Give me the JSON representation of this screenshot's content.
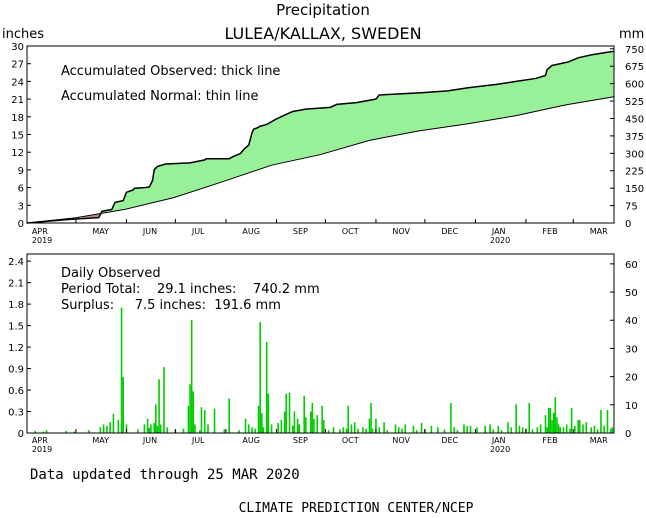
{
  "title": "Precipitation",
  "subtitle": "LULEA/KALLAX, SWEDEN",
  "footer_updated": "Data updated through 25 MAR 2020",
  "footer_credit": "CLIMATE PREDICTION CENTER/NCEP",
  "colors": {
    "surplus": "#98f098",
    "deficit": "#c08080",
    "daily": "#00cc00",
    "line": "#000000"
  },
  "chart_data": [
    {
      "type": "area",
      "left_unit": "inches",
      "right_unit": "mm",
      "legend_observed": "Accumulated Observed: thick line",
      "legend_normal": "Accumulated Normal: thin line",
      "ylim": [
        0,
        30
      ],
      "yticks_left": [
        "0",
        "3",
        "6",
        "9",
        "12",
        "15",
        "18",
        "21",
        "24",
        "27",
        "30"
      ],
      "yticks_right": [
        "0",
        "75",
        "150",
        "225",
        "300",
        "375",
        "450",
        "525",
        "600",
        "675",
        "750"
      ],
      "xlabels": [
        "APR",
        "MAY",
        "JUN",
        "JUL",
        "AUG",
        "SEP",
        "OCT",
        "NOV",
        "DEC",
        "JAN",
        "FEB",
        "MAR"
      ],
      "xlabel_years": {
        "APR": "2019",
        "JAN": "2020"
      },
      "observed": [
        [
          0,
          0
        ],
        [
          25,
          0.6
        ],
        [
          44,
          0.9
        ],
        [
          46,
          2
        ],
        [
          52,
          2.3
        ],
        [
          54,
          3.5
        ],
        [
          59,
          3.8
        ],
        [
          61,
          5.2
        ],
        [
          65,
          5.6
        ],
        [
          66,
          5.9
        ],
        [
          72,
          6.0
        ],
        [
          75,
          6.1
        ],
        [
          77,
          7.2
        ],
        [
          78,
          9.0
        ],
        [
          80,
          9.6
        ],
        [
          85,
          10.0
        ],
        [
          100,
          10.2
        ],
        [
          109,
          10.7
        ],
        [
          110,
          10.9
        ],
        [
          124,
          10.9
        ],
        [
          126,
          11.2
        ],
        [
          131,
          11.8
        ],
        [
          133,
          12.5
        ],
        [
          136,
          13.2
        ],
        [
          138,
          15.3
        ],
        [
          139,
          15.9
        ],
        [
          141,
          16.1
        ],
        [
          143,
          16.4
        ],
        [
          147,
          16.7
        ],
        [
          152,
          17.5
        ],
        [
          158,
          18.3
        ],
        [
          163,
          18.9
        ],
        [
          171,
          19.3
        ],
        [
          186,
          19.6
        ],
        [
          190,
          20.1
        ],
        [
          202,
          20.4
        ],
        [
          214,
          21.0
        ],
        [
          216,
          21.7
        ],
        [
          243,
          22.1
        ],
        [
          258,
          22.4
        ],
        [
          270,
          22.9
        ],
        [
          282,
          23.3
        ],
        [
          288,
          23.5
        ],
        [
          300,
          24.0
        ],
        [
          312,
          24.5
        ],
        [
          318,
          25.0
        ],
        [
          319,
          26.0
        ],
        [
          322,
          26.7
        ],
        [
          332,
          27.3
        ],
        [
          338,
          28.0
        ],
        [
          346,
          28.5
        ],
        [
          355,
          28.9
        ],
        [
          360,
          29.1
        ]
      ],
      "normal": [
        [
          0,
          0
        ],
        [
          30,
          0.9
        ],
        [
          60,
          2.3
        ],
        [
          90,
          4.3
        ],
        [
          120,
          7.0
        ],
        [
          150,
          9.8
        ],
        [
          180,
          11.6
        ],
        [
          210,
          14.0
        ],
        [
          240,
          15.6
        ],
        [
          270,
          16.8
        ],
        [
          300,
          18.2
        ],
        [
          330,
          20.0
        ],
        [
          360,
          21.4
        ]
      ]
    },
    {
      "type": "bar",
      "label": "Daily Observed",
      "period_total": "Period Total:    29.1 inches:    740.2 mm",
      "surplus": "Surplus:     7.5 inches:  191.6 mm",
      "ylim": [
        0,
        2.5
      ],
      "yticks_left": [
        "0",
        "0.3",
        "0.6",
        "0.9",
        "1.2",
        "1.5",
        "1.8",
        "2.1",
        "2.4"
      ],
      "yticks_right": [
        "0",
        "10",
        "20",
        "30",
        "40",
        "50",
        "60"
      ],
      "xlabels": [
        "APR",
        "MAY",
        "JUN",
        "JUL",
        "AUG",
        "SEP",
        "OCT",
        "NOV",
        "DEC",
        "JAN",
        "FEB",
        "MAR"
      ],
      "xlabel_years": {
        "APR": "2019",
        "JAN": "2020"
      },
      "daily": [
        [
          5,
          0.03
        ],
        [
          10,
          0.02
        ],
        [
          12,
          0.04
        ],
        [
          24,
          0.03
        ],
        [
          29,
          0.02
        ],
        [
          38,
          0.04
        ],
        [
          45,
          0.08
        ],
        [
          47,
          0.12
        ],
        [
          49,
          0.1
        ],
        [
          51,
          0.15
        ],
        [
          53,
          0.27
        ],
        [
          56,
          0.18
        ],
        [
          58,
          1.75
        ],
        [
          59,
          0.78
        ],
        [
          61,
          0.12
        ],
        [
          68,
          0.05
        ],
        [
          72,
          0.12
        ],
        [
          74,
          0.2
        ],
        [
          75,
          0.07
        ],
        [
          76,
          0.12
        ],
        [
          78,
          0.14
        ],
        [
          79,
          0.4
        ],
        [
          80,
          0.1
        ],
        [
          81,
          0.75
        ],
        [
          82,
          0.12
        ],
        [
          84,
          0.92
        ],
        [
          86,
          0.08
        ],
        [
          91,
          0.05
        ],
        [
          96,
          0.06
        ],
        [
          99,
          0.38
        ],
        [
          100,
          0.68
        ],
        [
          101,
          1.58
        ],
        [
          102,
          0.58
        ],
        [
          103,
          0.12
        ],
        [
          106,
          0.04
        ],
        [
          107,
          0.36
        ],
        [
          109,
          0.32
        ],
        [
          111,
          0.12
        ],
        [
          115,
          0.34
        ],
        [
          121,
          0.05
        ],
        [
          124,
          0.48
        ],
        [
          130,
          0.04
        ],
        [
          134,
          0.2
        ],
        [
          136,
          0.12
        ],
        [
          138,
          0.08
        ],
        [
          140,
          0.06
        ],
        [
          142,
          0.38
        ],
        [
          143,
          1.55
        ],
        [
          144,
          0.28
        ],
        [
          145,
          0.08
        ],
        [
          147,
          1.27
        ],
        [
          148,
          0.55
        ],
        [
          150,
          0.12
        ],
        [
          154,
          0.14
        ],
        [
          156,
          0.18
        ],
        [
          158,
          0.3
        ],
        [
          159,
          0.55
        ],
        [
          161,
          0.56
        ],
        [
          163,
          0.1
        ],
        [
          164,
          0.3
        ],
        [
          166,
          0.2
        ],
        [
          167,
          0.12
        ],
        [
          170,
          0.52
        ],
        [
          171,
          0.22
        ],
        [
          174,
          0.3
        ],
        [
          175,
          0.42
        ],
        [
          176,
          0.2
        ],
        [
          178,
          0.25
        ],
        [
          181,
          0.38
        ],
        [
          182,
          0.18
        ],
        [
          185,
          0.04
        ],
        [
          188,
          0.08
        ],
        [
          192,
          0.05
        ],
        [
          194,
          0.08
        ],
        [
          196,
          0.06
        ],
        [
          197,
          0.38
        ],
        [
          199,
          0.12
        ],
        [
          201,
          0.15
        ],
        [
          203,
          0.06
        ],
        [
          206,
          0.08
        ],
        [
          208,
          0.06
        ],
        [
          210,
          0.2
        ],
        [
          211,
          0.42
        ],
        [
          212,
          0.06
        ],
        [
          214,
          0.2
        ],
        [
          216,
          0.08
        ],
        [
          219,
          0.15
        ],
        [
          221,
          0.04
        ],
        [
          226,
          0.12
        ],
        [
          228,
          0.08
        ],
        [
          230,
          0.06
        ],
        [
          232,
          0.12
        ],
        [
          237,
          0.1
        ],
        [
          239,
          0.04
        ],
        [
          242,
          0.14
        ],
        [
          244,
          0.05
        ],
        [
          248,
          0.1
        ],
        [
          252,
          0.08
        ],
        [
          256,
          0.05
        ],
        [
          260,
          0.42
        ],
        [
          262,
          0.08
        ],
        [
          264,
          0.04
        ],
        [
          268,
          0.12
        ],
        [
          270,
          0.1
        ],
        [
          272,
          0.1
        ],
        [
          276,
          0.08
        ],
        [
          281,
          0.1
        ],
        [
          284,
          0.12
        ],
        [
          286,
          0.05
        ],
        [
          289,
          0.1
        ],
        [
          291,
          0.04
        ],
        [
          295,
          0.15
        ],
        [
          297,
          0.08
        ],
        [
          300,
          0.4
        ],
        [
          302,
          0.1
        ],
        [
          304,
          0.08
        ],
        [
          306,
          0.06
        ],
        [
          308,
          0.42
        ],
        [
          310,
          0.05
        ],
        [
          313,
          0.08
        ],
        [
          315,
          0.12
        ],
        [
          318,
          0.25
        ],
        [
          319,
          0.08
        ],
        [
          320,
          0.35
        ],
        [
          321,
          0.35
        ],
        [
          322,
          0.18
        ],
        [
          323,
          0.28
        ],
        [
          324,
          0.5
        ],
        [
          325,
          0.22
        ],
        [
          326,
          0.12
        ],
        [
          327,
          0.08
        ],
        [
          329,
          0.08
        ],
        [
          331,
          0.12
        ],
        [
          333,
          0.06
        ],
        [
          334,
          0.35
        ],
        [
          336,
          0.1
        ],
        [
          338,
          0.18
        ],
        [
          339,
          0.18
        ],
        [
          341,
          0.12
        ],
        [
          343,
          0.15
        ],
        [
          346,
          0.08
        ],
        [
          348,
          0.1
        ],
        [
          350,
          0.05
        ],
        [
          352,
          0.32
        ],
        [
          354,
          0.1
        ],
        [
          356,
          0.32
        ],
        [
          358,
          0.06
        ],
        [
          359,
          0.08
        ]
      ]
    }
  ]
}
